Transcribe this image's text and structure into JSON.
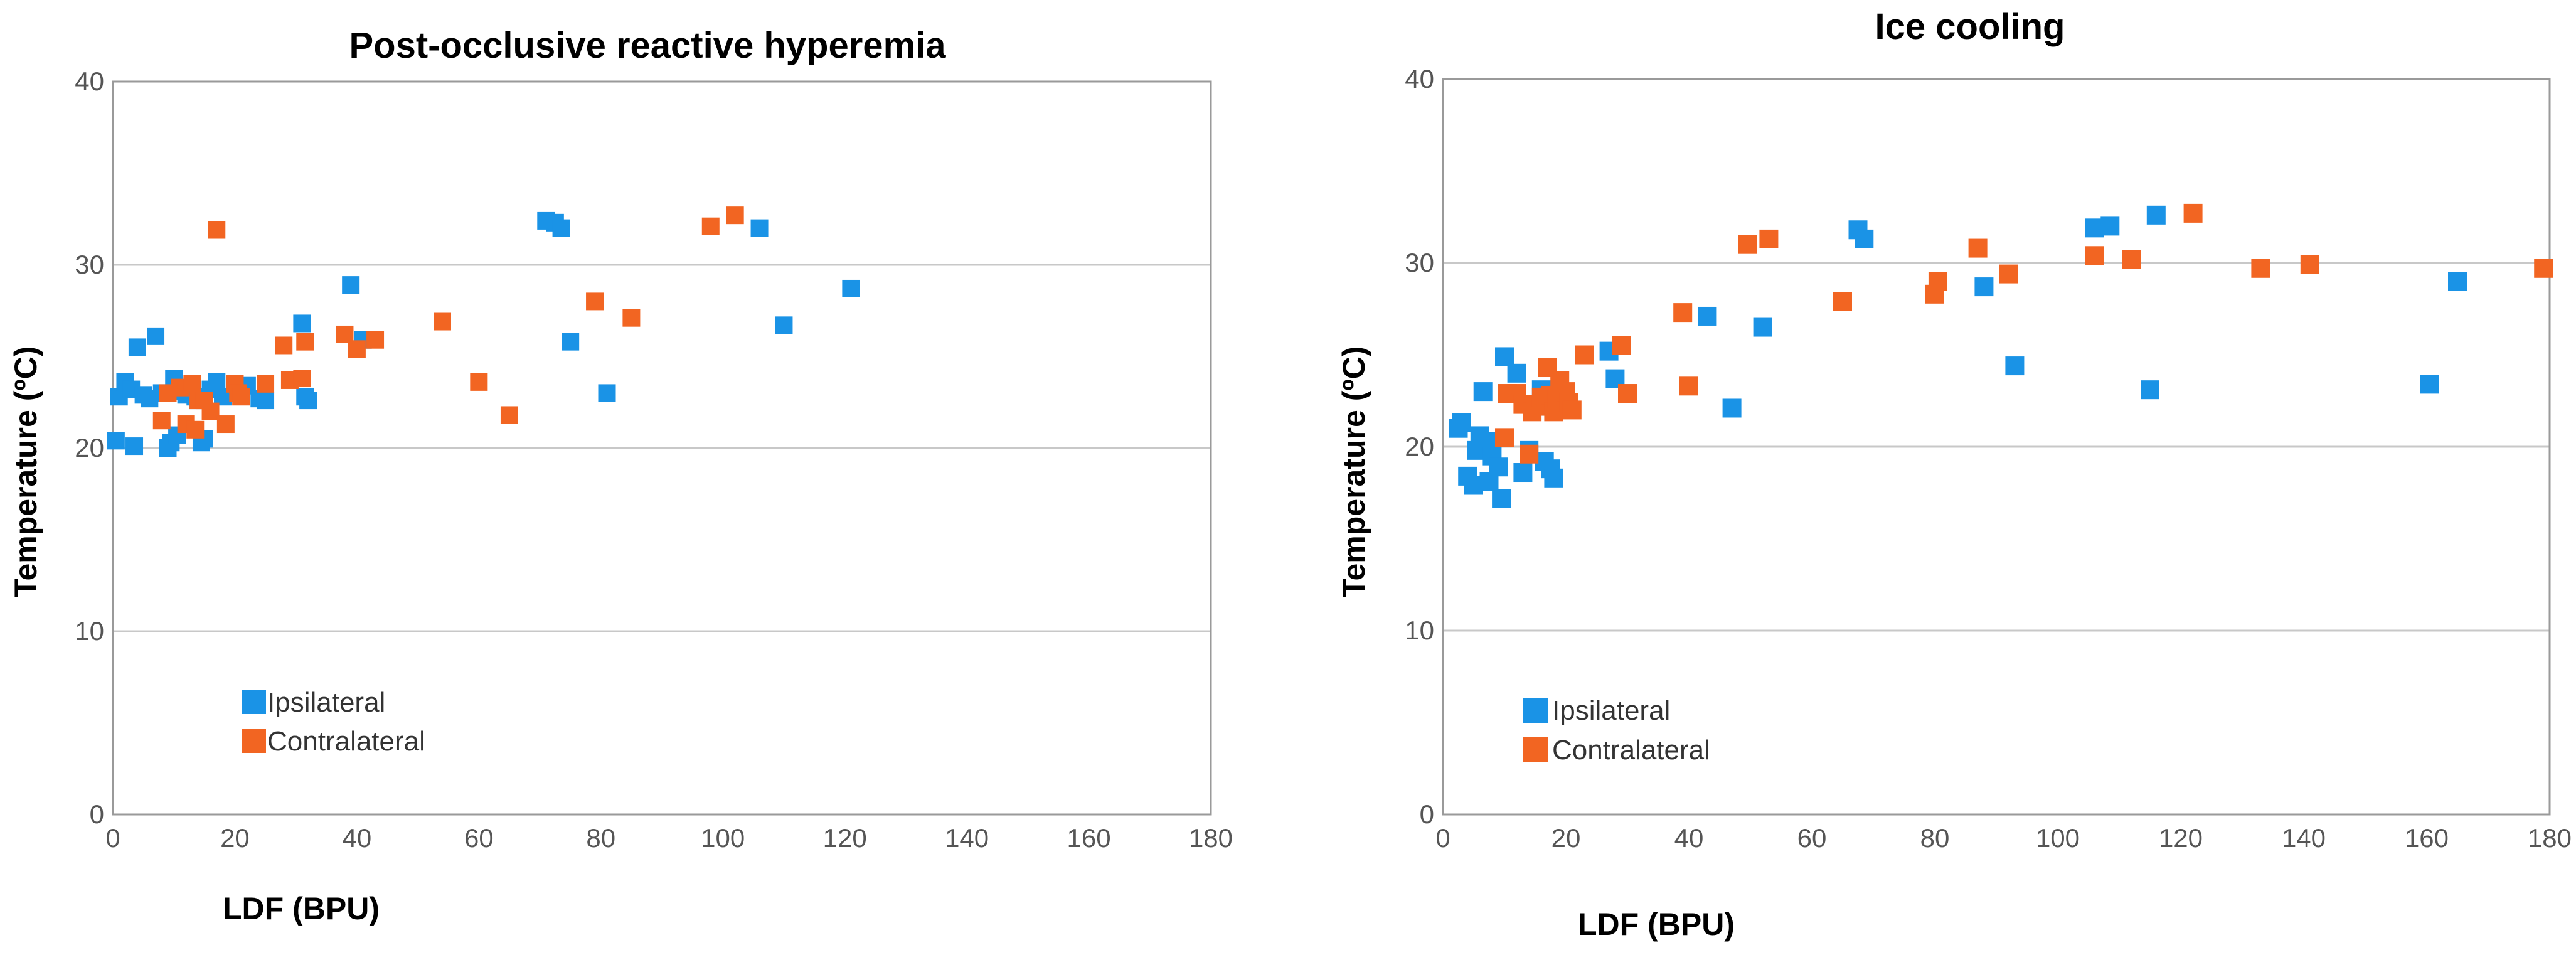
{
  "colors": {
    "ipsilateral": "#1a93e6",
    "contralateral": "#f26522",
    "grid": "#c8c8c8",
    "frame": "#9a9a9a"
  },
  "chart_data": [
    {
      "type": "scatter",
      "title": "Post-occlusive reactive hyperemia",
      "xlabel": "LDF (BPU)",
      "ylabel": "Temperature (ºC)",
      "xlim": [
        0,
        180
      ],
      "ylim": [
        0,
        40
      ],
      "xticks": [
        "0",
        "20",
        "40",
        "60",
        "80",
        "100",
        "120",
        "140",
        "160",
        "180"
      ],
      "yticks": [
        "0",
        "10",
        "20",
        "30",
        "40"
      ],
      "grid": "horizontal",
      "legend_position": "bottom-left",
      "series": [
        {
          "name": "Ipsilateral",
          "color_key": "ipsilateral",
          "points": [
            [
              0.5,
              20.4
            ],
            [
              1,
              22.8
            ],
            [
              2,
              23.6
            ],
            [
              3,
              23.2
            ],
            [
              3.5,
              20.1
            ],
            [
              4,
              25.5
            ],
            [
              5,
              22.9
            ],
            [
              6,
              22.7
            ],
            [
              7,
              26.1
            ],
            [
              8,
              23.0
            ],
            [
              9,
              20.0
            ],
            [
              9.5,
              20.3
            ],
            [
              10,
              23.8
            ],
            [
              10.5,
              20.7
            ],
            [
              11,
              23.1
            ],
            [
              12,
              22.9
            ],
            [
              13,
              23.4
            ],
            [
              13.5,
              22.8
            ],
            [
              14,
              22.6
            ],
            [
              14.5,
              20.3
            ],
            [
              15,
              20.5
            ],
            [
              16,
              23.2
            ],
            [
              17,
              23.6
            ],
            [
              18,
              22.8
            ],
            [
              22,
              23.4
            ],
            [
              24,
              22.7
            ],
            [
              25,
              22.6
            ],
            [
              31,
              26.8
            ],
            [
              31.5,
              22.8
            ],
            [
              32,
              22.6
            ],
            [
              39,
              28.9
            ],
            [
              41,
              25.9
            ],
            [
              71,
              32.4
            ],
            [
              72.5,
              32.3
            ],
            [
              73.5,
              32.0
            ],
            [
              75,
              25.8
            ],
            [
              81,
              23.0
            ],
            [
              106,
              32.0
            ],
            [
              110,
              26.7
            ],
            [
              121,
              28.7
            ]
          ]
        },
        {
          "name": "Contralateral",
          "color_key": "contralateral",
          "points": [
            [
              8,
              21.5
            ],
            [
              9,
              23.0
            ],
            [
              11,
              23.3
            ],
            [
              12,
              21.3
            ],
            [
              13,
              23.5
            ],
            [
              13.5,
              21.0
            ],
            [
              14,
              22.6
            ],
            [
              15,
              22.6
            ],
            [
              16,
              22.0
            ],
            [
              17,
              31.9
            ],
            [
              18.5,
              21.3
            ],
            [
              20,
              23.5
            ],
            [
              20.5,
              23.0
            ],
            [
              21,
              22.8
            ],
            [
              25,
              23.5
            ],
            [
              28,
              25.6
            ],
            [
              29,
              23.7
            ],
            [
              31,
              23.8
            ],
            [
              31.5,
              25.8
            ],
            [
              38,
              26.2
            ],
            [
              40,
              25.4
            ],
            [
              43,
              25.9
            ],
            [
              54,
              26.9
            ],
            [
              60,
              23.6
            ],
            [
              65,
              21.8
            ],
            [
              79,
              28.0
            ],
            [
              85,
              27.1
            ],
            [
              98,
              32.1
            ],
            [
              102,
              32.7
            ]
          ]
        }
      ]
    },
    {
      "type": "scatter",
      "title": "Ice cooling",
      "xlabel": "LDF (BPU)",
      "ylabel": "Temperature (ºC)",
      "xlim": [
        0,
        180
      ],
      "ylim": [
        0,
        40
      ],
      "xticks": [
        "0",
        "20",
        "40",
        "60",
        "80",
        "100",
        "120",
        "140",
        "160",
        "180"
      ],
      "yticks": [
        "0",
        "10",
        "20",
        "30",
        "40"
      ],
      "grid": "horizontal",
      "legend_position": "bottom-left",
      "series": [
        {
          "name": "Ipsilateral",
          "color_key": "ipsilateral",
          "points": [
            [
              2.5,
              21.0
            ],
            [
              3,
              21.3
            ],
            [
              4,
              18.4
            ],
            [
              5,
              17.9
            ],
            [
              5.5,
              19.8
            ],
            [
              6,
              20.6
            ],
            [
              6.5,
              23.0
            ],
            [
              7,
              20.3
            ],
            [
              7.5,
              18.1
            ],
            [
              8,
              19.5
            ],
            [
              9,
              18.9
            ],
            [
              9.5,
              17.2
            ],
            [
              10,
              24.9
            ],
            [
              12,
              24.0
            ],
            [
              13,
              18.6
            ],
            [
              14,
              19.8
            ],
            [
              15,
              22.2
            ],
            [
              16,
              23.1
            ],
            [
              16.5,
              19.2
            ],
            [
              17.5,
              18.8
            ],
            [
              18,
              18.3
            ],
            [
              27,
              25.2
            ],
            [
              28,
              23.7
            ],
            [
              43,
              27.1
            ],
            [
              47,
              22.1
            ],
            [
              52,
              26.5
            ],
            [
              67.5,
              31.8
            ],
            [
              68.5,
              31.3
            ],
            [
              88,
              28.7
            ],
            [
              93,
              24.4
            ],
            [
              106,
              31.9
            ],
            [
              108.5,
              32.0
            ],
            [
              115,
              23.1
            ],
            [
              116,
              32.6
            ],
            [
              160.5,
              23.4
            ],
            [
              165,
              29.0
            ]
          ]
        },
        {
          "name": "Contralateral",
          "color_key": "contralateral",
          "points": [
            [
              10,
              20.5
            ],
            [
              10.5,
              22.9
            ],
            [
              12,
              22.9
            ],
            [
              13,
              22.3
            ],
            [
              14,
              19.6
            ],
            [
              14.5,
              21.9
            ],
            [
              15,
              22.2
            ],
            [
              16,
              22.7
            ],
            [
              17,
              24.3
            ],
            [
              17.5,
              22.8
            ],
            [
              18,
              21.9
            ],
            [
              18.5,
              22.6
            ],
            [
              19,
              23.6
            ],
            [
              20,
              23.0
            ],
            [
              20.5,
              22.4
            ],
            [
              21,
              22.0
            ],
            [
              23,
              25.0
            ],
            [
              29,
              25.5
            ],
            [
              30,
              22.9
            ],
            [
              39,
              27.3
            ],
            [
              40,
              23.3
            ],
            [
              49.5,
              31.0
            ],
            [
              53,
              31.3
            ],
            [
              65,
              27.9
            ],
            [
              80,
              28.3
            ],
            [
              80.5,
              29.0
            ],
            [
              87,
              30.8
            ],
            [
              92,
              29.4
            ],
            [
              106,
              30.4
            ],
            [
              112,
              30.2
            ],
            [
              122,
              32.7
            ],
            [
              133,
              29.7
            ],
            [
              141,
              29.9
            ],
            [
              179,
              29.7
            ]
          ]
        }
      ]
    }
  ]
}
